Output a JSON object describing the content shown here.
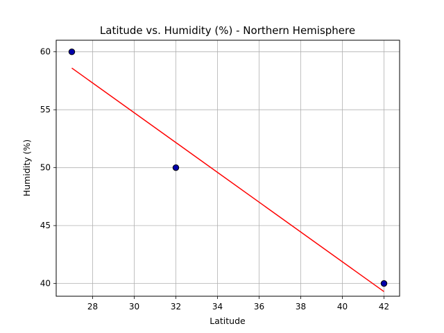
{
  "chart_data": {
    "type": "scatter",
    "title": "Latitude vs. Humidity (%) - Northern Hemisphere",
    "xlabel": "Latitude",
    "ylabel": "Humidity (%)",
    "xlim": [
      26.25,
      42.75
    ],
    "ylim": [
      38.9,
      61.0
    ],
    "xticks": [
      28,
      30,
      32,
      34,
      36,
      38,
      40,
      42
    ],
    "yticks": [
      40,
      45,
      50,
      55,
      60
    ],
    "grid": true,
    "legend": "none",
    "series": [
      {
        "type": "scatter",
        "points": [
          {
            "x": 27,
            "y": 60
          },
          {
            "x": 32,
            "y": 50
          },
          {
            "x": 42,
            "y": 40
          }
        ],
        "color": "#0000aa",
        "edgecolor": "#000000"
      },
      {
        "type": "line",
        "points": [
          {
            "x": 27,
            "y": 58.6
          },
          {
            "x": 42,
            "y": 39.3
          }
        ],
        "color": "#ff0000"
      }
    ]
  }
}
